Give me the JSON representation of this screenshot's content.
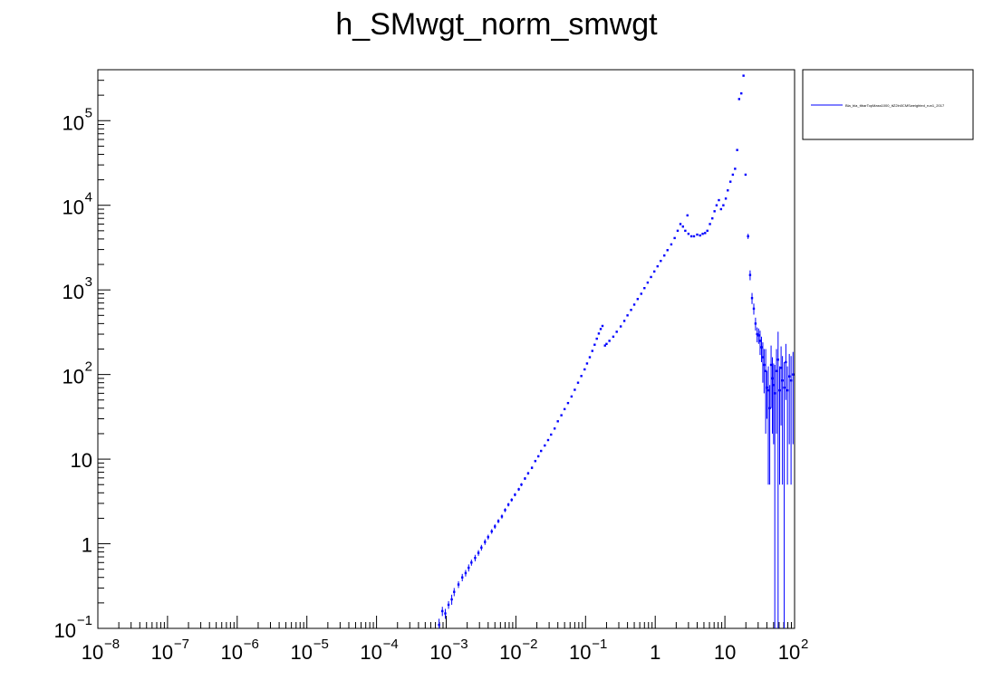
{
  "chart_data": {
    "type": "scatter",
    "title": "h_SMwgt_norm_smwgt",
    "xlabel": "",
    "ylabel": "",
    "x_scale": "log",
    "y_scale": "log",
    "xlim": [
      1e-08,
      100
    ],
    "ylim": [
      0.1,
      400000
    ],
    "grid": false,
    "legend_position": "top-right outside",
    "series_color": "#0000ff",
    "x_tick_labels": [
      {
        "v": 1e-08,
        "base": "10",
        "exp": "−8"
      },
      {
        "v": 1e-07,
        "base": "10",
        "exp": "−7"
      },
      {
        "v": 1e-06,
        "base": "10",
        "exp": "−6"
      },
      {
        "v": 1e-05,
        "base": "10",
        "exp": "−5"
      },
      {
        "v": 0.0001,
        "base": "10",
        "exp": "−4"
      },
      {
        "v": 0.001,
        "base": "10",
        "exp": "−3"
      },
      {
        "v": 0.01,
        "base": "10",
        "exp": "−2"
      },
      {
        "v": 0.1,
        "base": "10",
        "exp": "−1"
      },
      {
        "v": 1,
        "base": "1",
        "exp": ""
      },
      {
        "v": 10,
        "base": "10",
        "exp": ""
      },
      {
        "v": 100,
        "base": "10",
        "exp": "2"
      }
    ],
    "y_tick_labels": [
      {
        "v": 0.1,
        "base": "10",
        "exp": "−1"
      },
      {
        "v": 1,
        "base": "1",
        "exp": ""
      },
      {
        "v": 10,
        "base": "10",
        "exp": ""
      },
      {
        "v": 100,
        "base": "10",
        "exp": "2"
      },
      {
        "v": 1000,
        "base": "10",
        "exp": "3"
      },
      {
        "v": 10000,
        "base": "10",
        "exp": "4"
      },
      {
        "v": 100000,
        "base": "10",
        "exp": "5"
      }
    ],
    "series": [
      {
        "name": "Bla_bla_ttbarTopMass1000_ttZ2ln0CMSweighted_run1_2017",
        "points": [
          [
            0.00079,
            0.11,
            0.02
          ],
          [
            0.00088,
            0.16,
            0.02
          ],
          [
            0.00097,
            0.15,
            0.02
          ],
          [
            0.00108,
            0.19,
            0.02
          ],
          [
            0.0012,
            0.22,
            0.03
          ],
          [
            0.0013,
            0.27,
            0.03
          ],
          [
            0.0015,
            0.33,
            0.03
          ],
          [
            0.0017,
            0.4,
            0.04
          ],
          [
            0.0019,
            0.45,
            0.04
          ],
          [
            0.0021,
            0.52,
            0.05
          ],
          [
            0.0023,
            0.6,
            0.05
          ],
          [
            0.0026,
            0.68,
            0.06
          ],
          [
            0.0029,
            0.78,
            0.06
          ],
          [
            0.0032,
            0.9,
            0.07
          ],
          [
            0.0036,
            1.05,
            0.08
          ],
          [
            0.004,
            1.2,
            0.08
          ],
          [
            0.0045,
            1.4,
            0.09
          ],
          [
            0.005,
            1.6,
            0.1
          ],
          [
            0.0056,
            1.85,
            0.1
          ],
          [
            0.0063,
            2.1,
            0.12
          ],
          [
            0.007,
            2.5,
            0.13
          ],
          [
            0.0078,
            2.9,
            0.14
          ],
          [
            0.0087,
            3.3,
            0.15
          ],
          [
            0.0097,
            3.8,
            0.16
          ],
          [
            0.011,
            4.4,
            0.18
          ],
          [
            0.012,
            5.0,
            0.2
          ],
          [
            0.0135,
            5.9,
            0.22
          ],
          [
            0.015,
            6.8,
            0.25
          ],
          [
            0.017,
            7.9,
            0.27
          ],
          [
            0.019,
            9.5,
            0.3
          ],
          [
            0.021,
            10.8,
            0.3
          ],
          [
            0.023,
            12.5,
            0.35
          ],
          [
            0.026,
            14.5,
            0.4
          ],
          [
            0.029,
            16.8,
            0.4
          ],
          [
            0.032,
            19.5,
            0.45
          ],
          [
            0.036,
            23,
            0.5
          ],
          [
            0.04,
            28,
            0.55
          ],
          [
            0.045,
            33,
            0.6
          ],
          [
            0.05,
            39,
            0.7
          ],
          [
            0.056,
            46,
            0.75
          ],
          [
            0.063,
            55,
            0.8
          ],
          [
            0.07,
            66,
            0.9
          ],
          [
            0.078,
            80,
            1
          ],
          [
            0.087,
            96,
            1.1
          ],
          [
            0.097,
            115,
            1.2
          ],
          [
            0.105,
            135,
            1.3
          ],
          [
            0.115,
            160,
            1.4
          ],
          [
            0.125,
            190,
            1.5
          ],
          [
            0.135,
            225,
            1.7
          ],
          [
            0.145,
            265,
            1.9
          ],
          [
            0.155,
            305,
            2
          ],
          [
            0.165,
            345,
            2.2
          ],
          [
            0.175,
            375,
            2.3
          ],
          [
            0.19,
            220,
            1.8
          ],
          [
            0.2,
            230,
            1.9
          ],
          [
            0.22,
            250,
            2
          ],
          [
            0.25,
            280,
            2.1
          ],
          [
            0.28,
            320,
            2.3
          ],
          [
            0.32,
            370,
            2.5
          ],
          [
            0.36,
            430,
            2.7
          ],
          [
            0.4,
            500,
            3
          ],
          [
            0.45,
            580,
            3.2
          ],
          [
            0.5,
            670,
            3.5
          ],
          [
            0.56,
            780,
            3.8
          ],
          [
            0.63,
            900,
            4
          ],
          [
            0.7,
            1050,
            4.5
          ],
          [
            0.78,
            1220,
            5
          ],
          [
            0.87,
            1420,
            5.5
          ],
          [
            0.97,
            1650,
            6
          ],
          [
            1.08,
            1900,
            6.5
          ],
          [
            1.2,
            2200,
            7
          ],
          [
            1.35,
            2550,
            8
          ],
          [
            1.5,
            2950,
            9
          ],
          [
            1.7,
            3450,
            10
          ],
          [
            1.9,
            4100,
            11
          ],
          [
            2.1,
            5000,
            12
          ],
          [
            2.3,
            6000,
            14
          ],
          [
            2.5,
            5600,
            14
          ],
          [
            2.7,
            5000,
            13
          ],
          [
            2.9,
            7600,
            15
          ],
          [
            3.0,
            4600,
            12
          ],
          [
            3.3,
            4300,
            12
          ],
          [
            3.6,
            4300,
            12
          ],
          [
            4.0,
            4500,
            12
          ],
          [
            4.4,
            4400,
            12
          ],
          [
            4.8,
            4600,
            12
          ],
          [
            5.2,
            4700,
            12
          ],
          [
            5.6,
            5000,
            13
          ],
          [
            6.1,
            6000,
            14
          ],
          [
            6.6,
            7000,
            15
          ],
          [
            7.1,
            8500,
            17
          ],
          [
            7.6,
            10000,
            18
          ],
          [
            8.2,
            11500,
            19
          ],
          [
            8.8,
            9000,
            17
          ],
          [
            9.5,
            10000,
            18
          ],
          [
            10.3,
            12000,
            20
          ],
          [
            11.0,
            15000,
            22
          ],
          [
            12.0,
            19000,
            25
          ],
          [
            13.0,
            23000,
            27
          ],
          [
            14.0,
            27000,
            30
          ],
          [
            15.0,
            45000,
            40
          ],
          [
            16.0,
            180000,
            80
          ],
          [
            17.2,
            210000,
            90
          ],
          [
            18.5,
            340000,
            110
          ],
          [
            19.8,
            23000,
            27
          ],
          [
            21.5,
            4300,
            300
          ],
          [
            23.0,
            1500,
            200
          ],
          [
            24.5,
            800,
            120
          ],
          [
            26.0,
            600,
            90
          ],
          [
            27.5,
            400,
            70
          ],
          [
            29.0,
            300,
            60
          ],
          [
            30.5,
            290,
            60
          ],
          [
            32.0,
            250,
            80
          ],
          [
            33.5,
            210,
            70
          ],
          [
            35.0,
            160,
            80
          ],
          [
            36.5,
            130,
            70
          ],
          [
            38.5,
            110,
            90
          ],
          [
            40.0,
            70,
            40
          ],
          [
            42.0,
            65,
            60
          ],
          [
            44.0,
            40,
            35
          ],
          [
            46.0,
            130,
            90
          ],
          [
            48.0,
            90,
            70
          ],
          [
            50.0,
            75,
            60
          ],
          [
            52.0,
            60,
            70
          ],
          [
            55.0,
            110,
            90
          ],
          [
            58.0,
            150,
            170
          ],
          [
            61.0,
            65,
            60
          ],
          [
            64.0,
            120,
            95
          ],
          [
            67.0,
            85,
            80
          ],
          [
            71.0,
            70,
            70
          ],
          [
            75.0,
            140,
            90
          ],
          [
            79.0,
            65,
            60
          ],
          [
            84.0,
            95,
            80
          ],
          [
            89.0,
            85,
            80
          ],
          [
            95.0,
            100,
            85
          ]
        ]
      }
    ]
  }
}
